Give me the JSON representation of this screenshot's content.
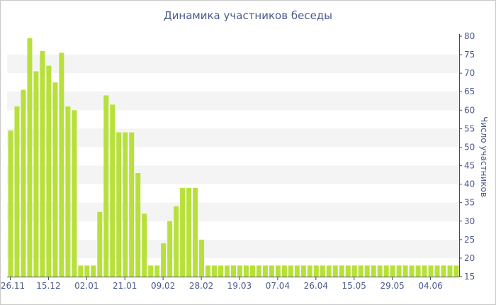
{
  "colors": {
    "bar": "#b8e03a",
    "band": "#f4f4f4",
    "axis": "#3a4a7a",
    "text": "#4a5a8a"
  },
  "chart_data": {
    "type": "bar",
    "title": "Динамика участников беседы",
    "xlabel": "",
    "ylabel": "Число участников",
    "ylim": [
      15,
      80
    ],
    "y_ticks": [
      15,
      20,
      25,
      30,
      35,
      40,
      45,
      50,
      55,
      60,
      65,
      70,
      75,
      80
    ],
    "y_axis_position": "right",
    "grid": "alternating horizontal bands",
    "x_ticks": [
      {
        "label": "26.11",
        "index": 0
      },
      {
        "label": "15.12",
        "index": 6
      },
      {
        "label": "02.01",
        "index": 12
      },
      {
        "label": "21.01",
        "index": 18
      },
      {
        "label": "09.02",
        "index": 24
      },
      {
        "label": "28.02",
        "index": 30
      },
      {
        "label": "19.03",
        "index": 36
      },
      {
        "label": "07.04",
        "index": 42
      },
      {
        "label": "26.04",
        "index": 48
      },
      {
        "label": "15.05",
        "index": 54
      },
      {
        "label": "29.05",
        "index": 60
      },
      {
        "label": "04.06",
        "index": 66
      }
    ],
    "values": [
      54.5,
      61,
      65.5,
      79.5,
      70.5,
      76,
      72,
      67.5,
      75.5,
      61,
      60,
      18,
      18,
      18,
      32.5,
      64,
      61.5,
      54,
      54,
      54,
      43,
      32,
      18,
      18,
      24,
      30,
      34,
      39,
      39,
      39,
      25,
      18,
      18,
      18,
      18,
      18,
      18,
      18,
      18,
      18,
      18,
      18,
      18,
      18,
      18,
      18,
      18,
      18,
      18,
      18,
      18,
      18,
      18,
      18,
      18,
      18,
      18,
      18,
      18,
      18,
      18,
      18,
      18,
      18,
      18,
      18,
      18,
      18,
      18,
      18,
      18
    ]
  }
}
